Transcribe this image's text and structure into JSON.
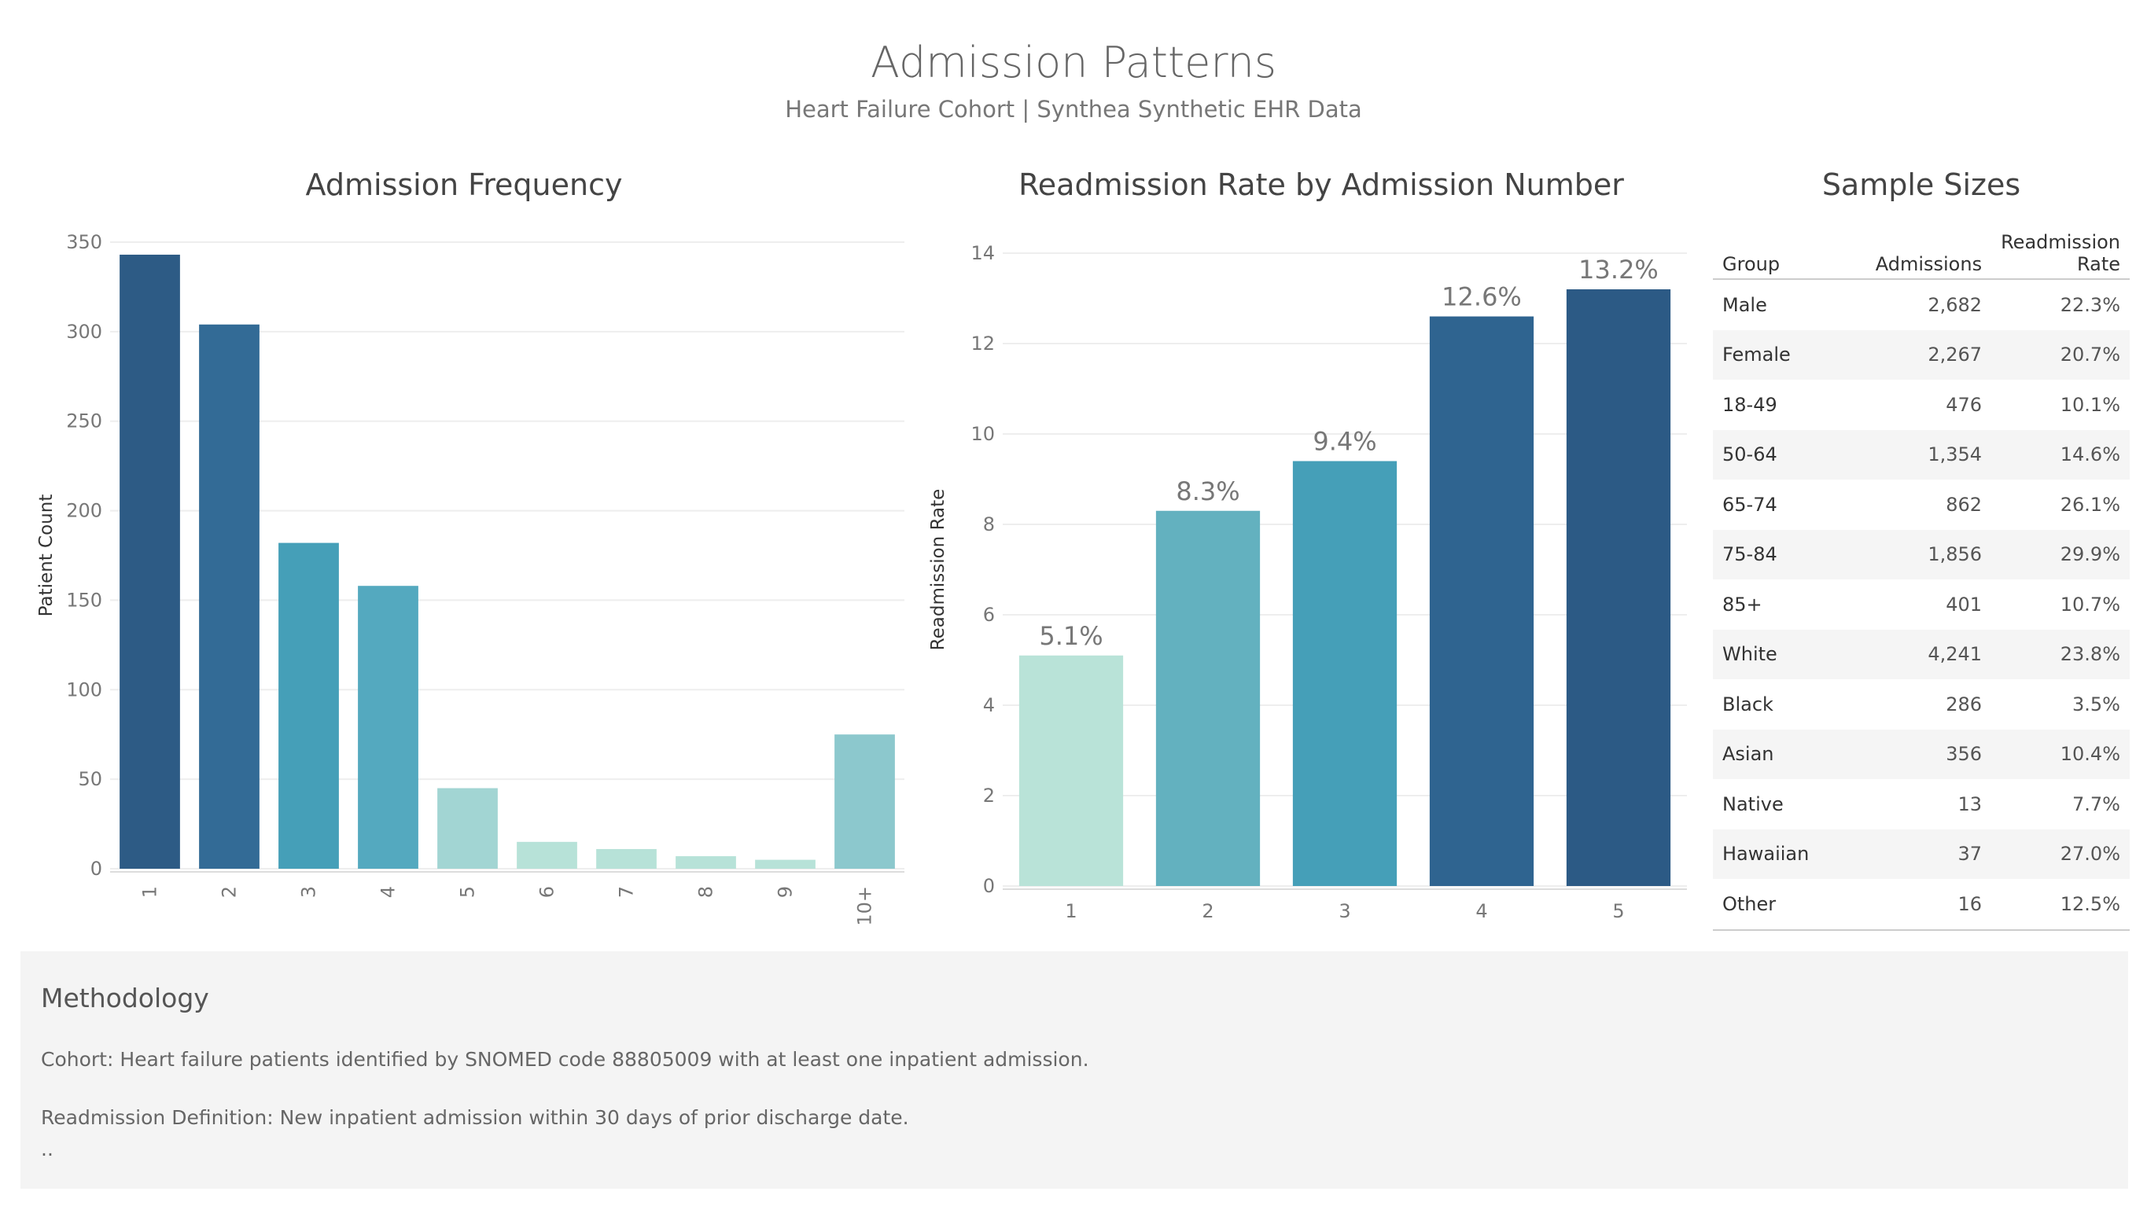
{
  "header": {
    "title": "Admission Patterns",
    "subtitle": "Heart Failure Cohort | Synthea Synthetic EHR Data"
  },
  "chart_data": [
    {
      "type": "bar",
      "title": "Admission Frequency",
      "xlabel": "",
      "ylabel": "Patient Count",
      "categories": [
        "1",
        "2",
        "3",
        "4",
        "5",
        "6",
        "7",
        "8",
        "9",
        "10+"
      ],
      "values": [
        343,
        304,
        182,
        158,
        45,
        15,
        11,
        7,
        5,
        75
      ],
      "ylim": [
        0,
        350
      ],
      "yticks": [
        0,
        50,
        100,
        150,
        200,
        250,
        300,
        350
      ],
      "grid": true,
      "colors": [
        "#2d5b85",
        "#336b96",
        "#459fb8",
        "#54a9bf",
        "#a2d5d3",
        "#b7e2d8",
        "#b7e2d8",
        "#b7e2d8",
        "#b7e2d8",
        "#8cc8cd"
      ]
    },
    {
      "type": "bar",
      "title": "Readmission Rate by Admission Number",
      "xlabel": "",
      "ylabel": "Readmission Rate",
      "categories": [
        "1",
        "2",
        "3",
        "4",
        "5"
      ],
      "values": [
        5.1,
        8.3,
        9.4,
        12.6,
        13.2
      ],
      "labels": [
        "5.1%",
        "8.3%",
        "9.4%",
        "12.6%",
        "13.2%"
      ],
      "ylim": [
        0,
        14
      ],
      "yticks": [
        0,
        2,
        4,
        6,
        8,
        10,
        12,
        14
      ],
      "grid": true,
      "colors": [
        "#b9e3d8",
        "#63b1bf",
        "#459fb8",
        "#2f6490",
        "#2c5a85"
      ]
    }
  ],
  "table": {
    "title": "Sample Sizes",
    "columns": [
      "Group",
      "Admissions",
      "Readmission Rate"
    ],
    "rows": [
      [
        "Male",
        "2,682",
        "22.3%"
      ],
      [
        "Female",
        "2,267",
        "20.7%"
      ],
      [
        "18-49",
        "476",
        "10.1%"
      ],
      [
        "50-64",
        "1,354",
        "14.6%"
      ],
      [
        "65-74",
        "862",
        "26.1%"
      ],
      [
        "75-84",
        "1,856",
        "29.9%"
      ],
      [
        "85+",
        "401",
        "10.7%"
      ],
      [
        "White",
        "4,241",
        "23.8%"
      ],
      [
        "Black",
        "286",
        "3.5%"
      ],
      [
        "Asian",
        "356",
        "10.4%"
      ],
      [
        "Native",
        "13",
        "7.7%"
      ],
      [
        "Hawaiian",
        "37",
        "27.0%"
      ],
      [
        "Other",
        "16",
        "12.5%"
      ]
    ]
  },
  "methodology": {
    "title": "Methodology",
    "cohort": "Cohort: Heart failure patients identified by SNOMED code 88805009 with at least one inpatient admission.",
    "definition": "Readmission Definition: New inpatient admission within 30 days of prior discharge date.",
    "more": ".."
  }
}
